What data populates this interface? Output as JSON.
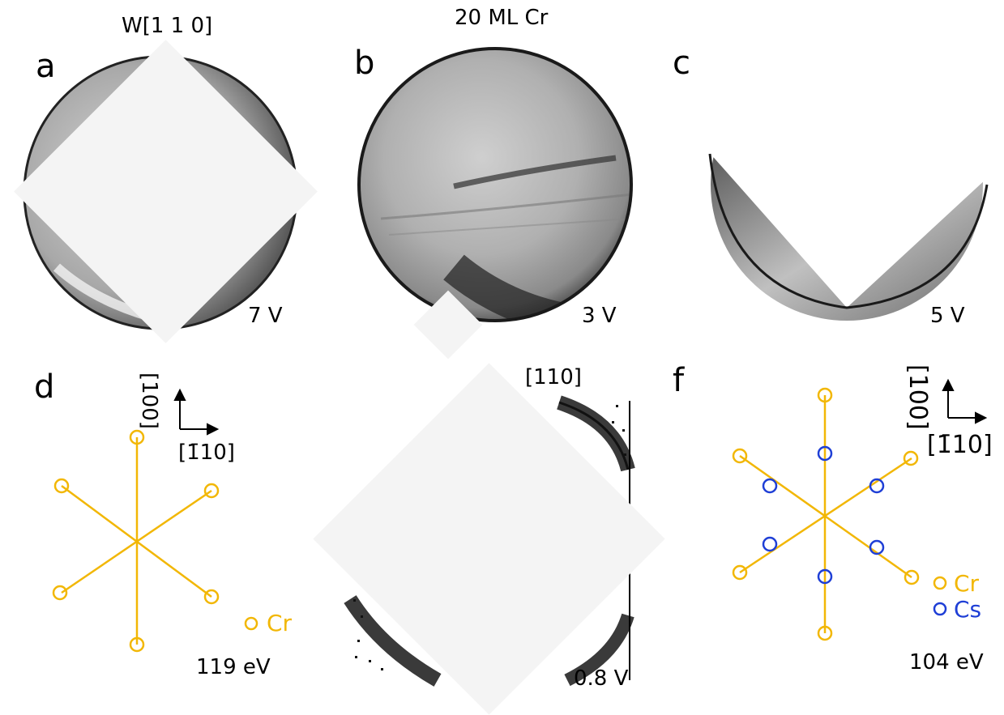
{
  "panels": {
    "a": {
      "letter": "a",
      "direction": "W[1 1 0]",
      "voltage": "7 V"
    },
    "b": {
      "letter": "b",
      "title": "20 ML Cr",
      "voltage": "3 V"
    },
    "c": {
      "letter": "c",
      "voltage": "5 V"
    },
    "d": {
      "letter": "d",
      "axis_vertical": "[100]",
      "axis_horizontal": "[1̄10]",
      "legend_cr": "Cr",
      "energy": "119 eV"
    },
    "e": {
      "direction": "[110]",
      "voltage": "0.8 V"
    },
    "f": {
      "letter": "f",
      "axis_vertical": "[100]",
      "axis_horizontal": "[1̄10]",
      "legend_cr": "Cr",
      "legend_cs": "Cs",
      "energy": "104 eV"
    }
  },
  "colors": {
    "cr": "#f2b705",
    "cs": "#1f3fd6",
    "occluder": "#f4f4f4"
  },
  "pattern_d": {
    "spots": [
      "Cr",
      "Cr",
      "Cr",
      "Cr",
      "Cr",
      "Cr"
    ]
  },
  "pattern_f": {
    "spots_cr": 6,
    "spots_cs": 6
  }
}
